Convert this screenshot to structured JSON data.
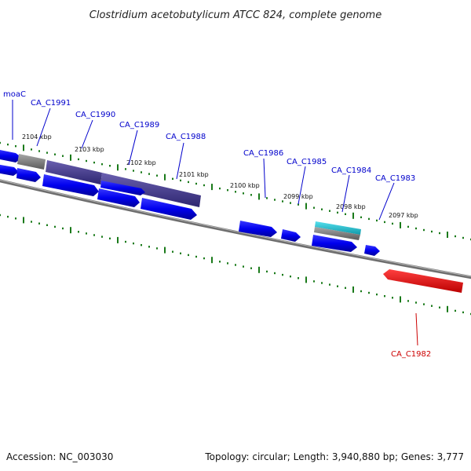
{
  "title": "Clostridium acetobutylicum ATCC 824, complete genome",
  "footer": {
    "accession": "Accession: NC_003030",
    "summary": "Topology: circular; Length: 3,940,880 bp; Genes: 3,777"
  },
  "colors": {
    "forward_cds": "#0000ee",
    "overlay_purple": "#4a4090",
    "gray_feature": "#808080",
    "rna_cyan": "#22bbcc",
    "highlight_red": "#ee0000",
    "tick_green": "#1a7a1a",
    "backbone": "#888888",
    "label_blue": "#0000cc",
    "label_red": "#cc0000"
  },
  "ticks": [
    {
      "label": "2104 kbp"
    },
    {
      "label": "2103 kbp"
    },
    {
      "label": "2102 kbp"
    },
    {
      "label": "2101 kbp"
    },
    {
      "label": "2100 kbp"
    },
    {
      "label": "2099 kbp"
    },
    {
      "label": "2098 kbp"
    },
    {
      "label": "2097 kbp"
    }
  ],
  "genes": [
    {
      "name": "moaC",
      "color": "blue"
    },
    {
      "name": "CA_C1991",
      "color": "blue"
    },
    {
      "name": "CA_C1990",
      "color": "blue"
    },
    {
      "name": "CA_C1989",
      "color": "blue"
    },
    {
      "name": "CA_C1988",
      "color": "blue"
    },
    {
      "name": "CA_C1986",
      "color": "blue"
    },
    {
      "name": "CA_C1985",
      "color": "blue"
    },
    {
      "name": "CA_C1984",
      "color": "blue"
    },
    {
      "name": "CA_C1983",
      "color": "blue"
    },
    {
      "name": "CA_C1982",
      "color": "red"
    }
  ]
}
